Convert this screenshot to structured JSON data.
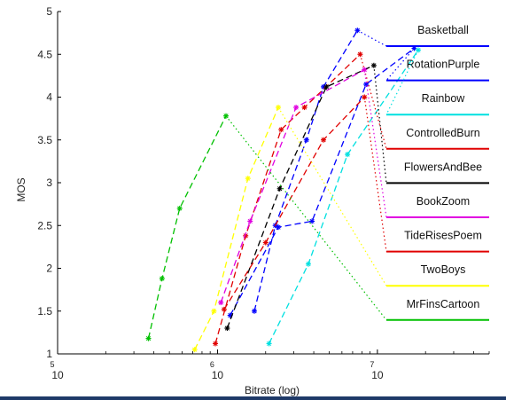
{
  "chart_data": {
    "type": "line",
    "xlabel": "Bitrate (log)",
    "ylabel": "MOS",
    "xscale": "log",
    "xlim": [
      100000,
      50000000
    ],
    "ylim": [
      1,
      5
    ],
    "x_ticks": [
      100000,
      1000000,
      10000000
    ],
    "x_tick_labels": [
      {
        "base": "10",
        "exp": "5"
      },
      {
        "base": "10",
        "exp": "6"
      },
      {
        "base": "10",
        "exp": "7"
      }
    ],
    "y_ticks": [
      "1",
      "1.5",
      "2",
      "2.5",
      "3",
      "3.5",
      "4",
      "4.5",
      "5"
    ],
    "grid": false,
    "legend_position": "right",
    "series": [
      {
        "name": "Basketball",
        "color": "#0000ff",
        "points": [
          [
            1700000,
            1.5
          ],
          [
            2300000,
            2.5
          ],
          [
            3600000,
            3.5
          ],
          [
            4600000,
            4.12
          ],
          [
            7500000,
            4.78
          ]
        ]
      },
      {
        "name": "RotationPurple",
        "color": "#0000ff",
        "points": [
          [
            1200000,
            1.45
          ],
          [
            2400000,
            2.48
          ],
          [
            3900000,
            2.55
          ],
          [
            8500000,
            4.15
          ],
          [
            17000000,
            4.57
          ]
        ]
      },
      {
        "name": "Rainbow",
        "color": "#00e0e0",
        "points": [
          [
            2100000,
            1.12
          ],
          [
            3700000,
            2.05
          ],
          [
            6500000,
            3.33
          ],
          [
            18000000,
            4.55
          ]
        ]
      },
      {
        "name": "ControlledBurn",
        "color": "#e00000",
        "points": [
          [
            970000,
            1.12
          ],
          [
            1500000,
            2.38
          ],
          [
            2500000,
            3.62
          ],
          [
            3500000,
            3.88
          ],
          [
            7800000,
            4.5
          ]
        ]
      },
      {
        "name": "FlowersAndBee",
        "color": "#000000",
        "points": [
          [
            1150000,
            1.3
          ],
          [
            2450000,
            2.93
          ],
          [
            4800000,
            4.12
          ],
          [
            9500000,
            4.37
          ]
        ]
      },
      {
        "name": "BookZoom",
        "color": "#e000e0",
        "points": [
          [
            1050000,
            1.6
          ],
          [
            1600000,
            2.55
          ],
          [
            3100000,
            3.88
          ],
          [
            8300000,
            4.32
          ]
        ]
      },
      {
        "name": "TideRisesPoem",
        "color": "#e00000",
        "points": [
          [
            1100000,
            1.52
          ],
          [
            2000000,
            2.3
          ],
          [
            4600000,
            3.5
          ],
          [
            8300000,
            4.0
          ]
        ]
      },
      {
        "name": "TwoBoys",
        "color": "#ffff00",
        "points": [
          [
            720000,
            1.05
          ],
          [
            950000,
            1.5
          ],
          [
            1550000,
            3.05
          ],
          [
            2400000,
            3.88
          ]
        ]
      },
      {
        "name": "MrFinsCartoon",
        "color": "#00c000",
        "points": [
          [
            370000,
            1.18
          ],
          [
            450000,
            1.88
          ],
          [
            580000,
            2.7
          ],
          [
            1130000,
            3.78
          ]
        ]
      }
    ]
  }
}
